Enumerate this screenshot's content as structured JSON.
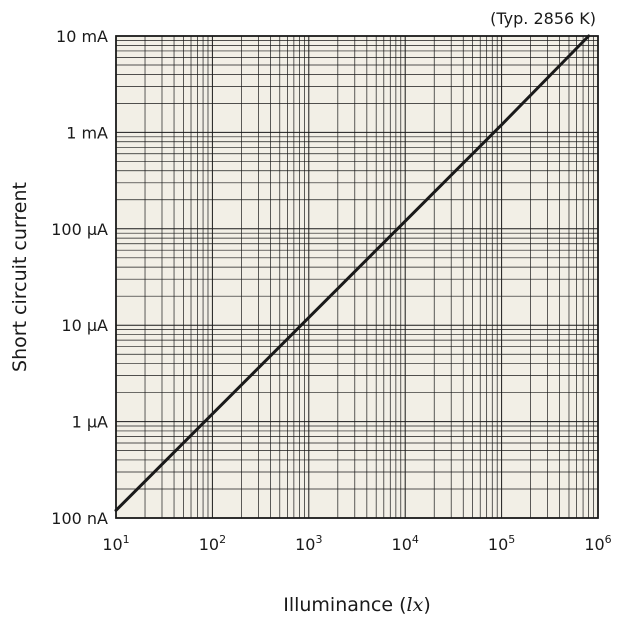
{
  "colors": {
    "plot_background": "#f2efe6",
    "grid_line": "#1a1a1a",
    "series_line": "#1a1a1a"
  },
  "chart_data": {
    "type": "line",
    "note": "(Typ. 2856 K)",
    "xlabel": "Illuminance",
    "xlabel_unit": "lx",
    "ylabel": "Short circuit current",
    "x_scale": "log",
    "y_scale": "log",
    "grid": true,
    "xlim": [
      10,
      1000000
    ],
    "ylim": [
      1e-07,
      0.01
    ],
    "x_ticks": [
      {
        "value": 10,
        "base": "10",
        "exp": "1"
      },
      {
        "value": 100,
        "base": "10",
        "exp": "2"
      },
      {
        "value": 1000,
        "base": "10",
        "exp": "3"
      },
      {
        "value": 10000,
        "base": "10",
        "exp": "4"
      },
      {
        "value": 100000,
        "base": "10",
        "exp": "5"
      },
      {
        "value": 1000000,
        "base": "10",
        "exp": "6"
      }
    ],
    "y_ticks": [
      {
        "value": 1e-07,
        "label": "100 nA"
      },
      {
        "value": 1e-06,
        "label": "1 μA"
      },
      {
        "value": 1e-05,
        "label": "10 μA"
      },
      {
        "value": 0.0001,
        "label": "100 μA"
      },
      {
        "value": 0.001,
        "label": "1 mA"
      },
      {
        "value": 0.01,
        "label": "10 mA"
      }
    ],
    "series": [
      {
        "x": [
          10,
          100,
          1000,
          10000,
          100000,
          800000
        ],
        "y": [
          1.2e-07,
          1.2e-06,
          1.2e-05,
          0.00012,
          0.0012,
          0.01
        ]
      }
    ]
  }
}
